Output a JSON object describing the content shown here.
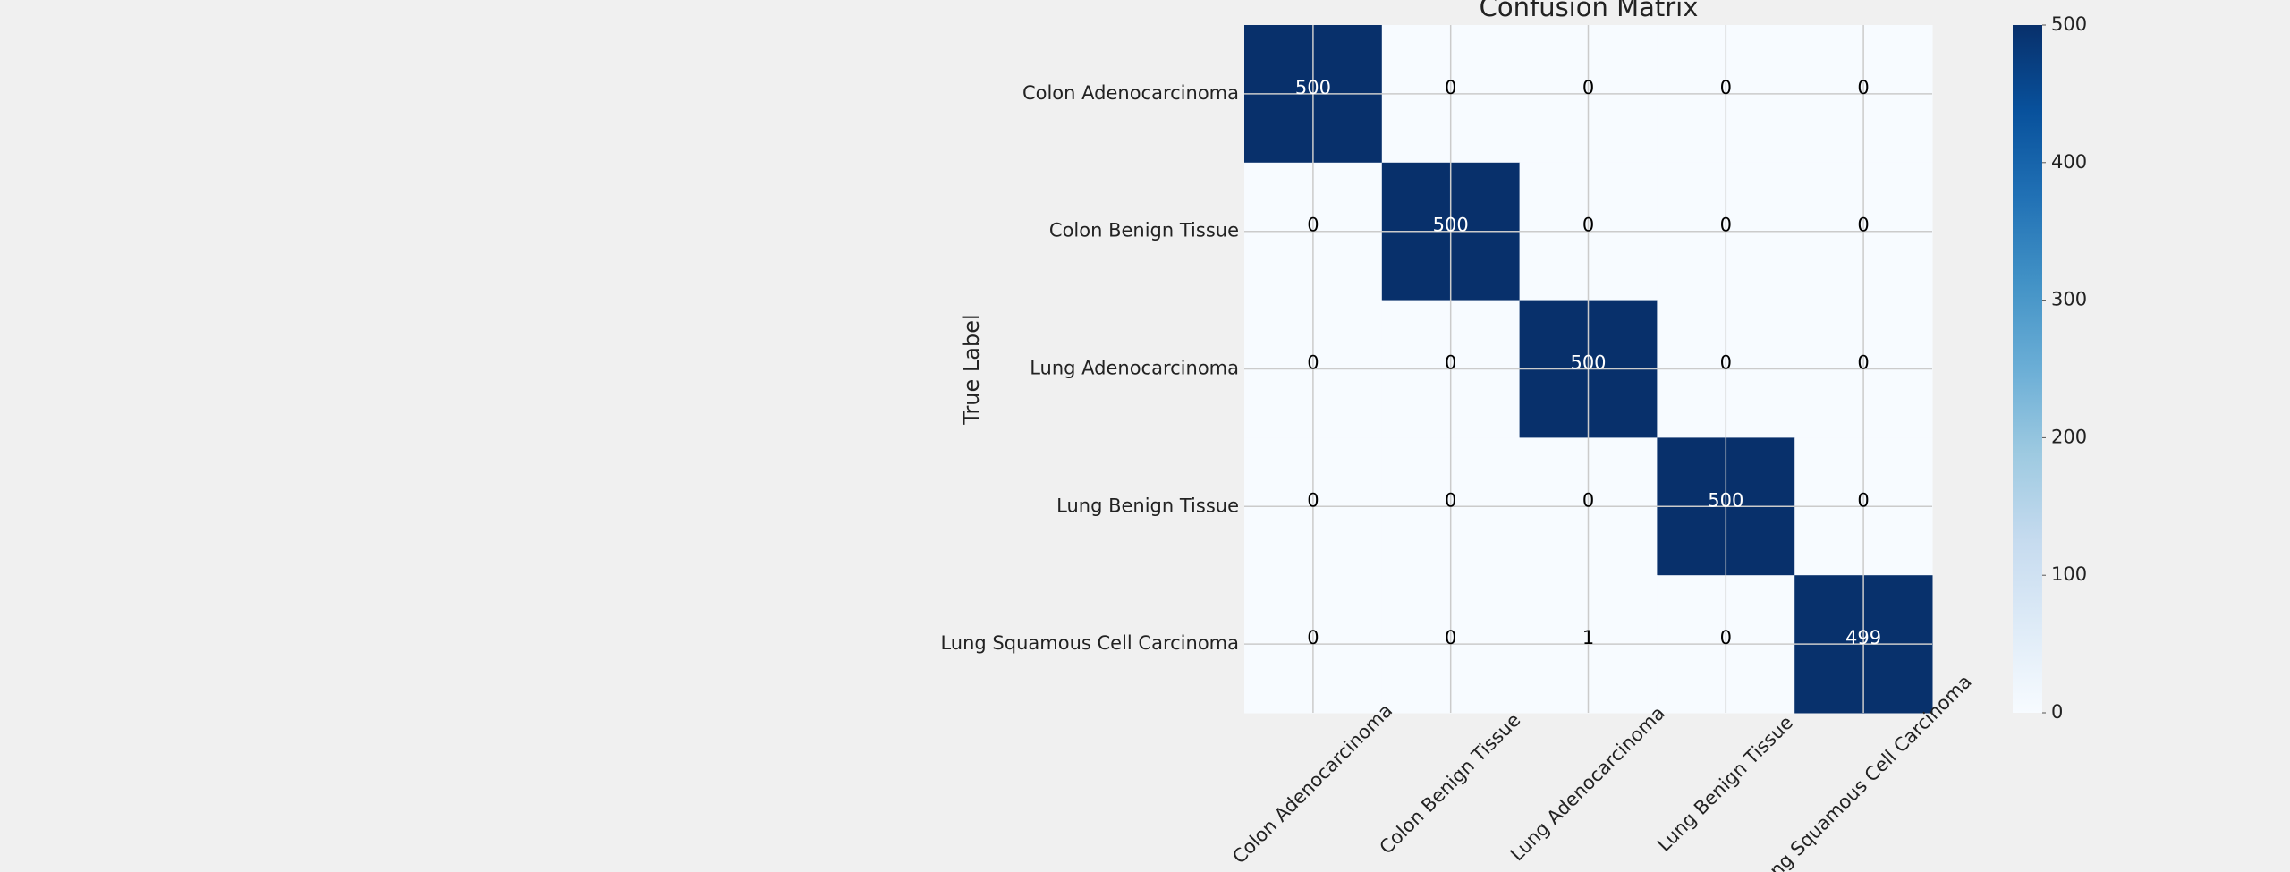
{
  "chart_data": {
    "type": "heatmap",
    "title": "Confusion Matrix",
    "ylabel": "True Label",
    "x_categories": [
      "Colon Adenocarcinoma",
      "Colon Benign Tissue",
      "Lung Adenocarcinoma",
      "Lung Benign Tissue",
      "Lung Squamous Cell Carcinoma"
    ],
    "y_categories": [
      "Colon Adenocarcinoma",
      "Colon Benign Tissue",
      "Lung Adenocarcinoma",
      "Lung Benign Tissue",
      "Lung Squamous Cell Carcinoma"
    ],
    "values": [
      [
        500,
        0,
        0,
        0,
        0
      ],
      [
        0,
        500,
        0,
        0,
        0
      ],
      [
        0,
        0,
        500,
        0,
        0
      ],
      [
        0,
        0,
        0,
        500,
        0
      ],
      [
        0,
        0,
        1,
        0,
        499
      ]
    ],
    "colormap": "Blues",
    "clim": [
      0,
      500
    ],
    "colorbar_ticks": [
      0,
      100,
      200,
      300,
      400,
      500
    ],
    "grid": true
  }
}
